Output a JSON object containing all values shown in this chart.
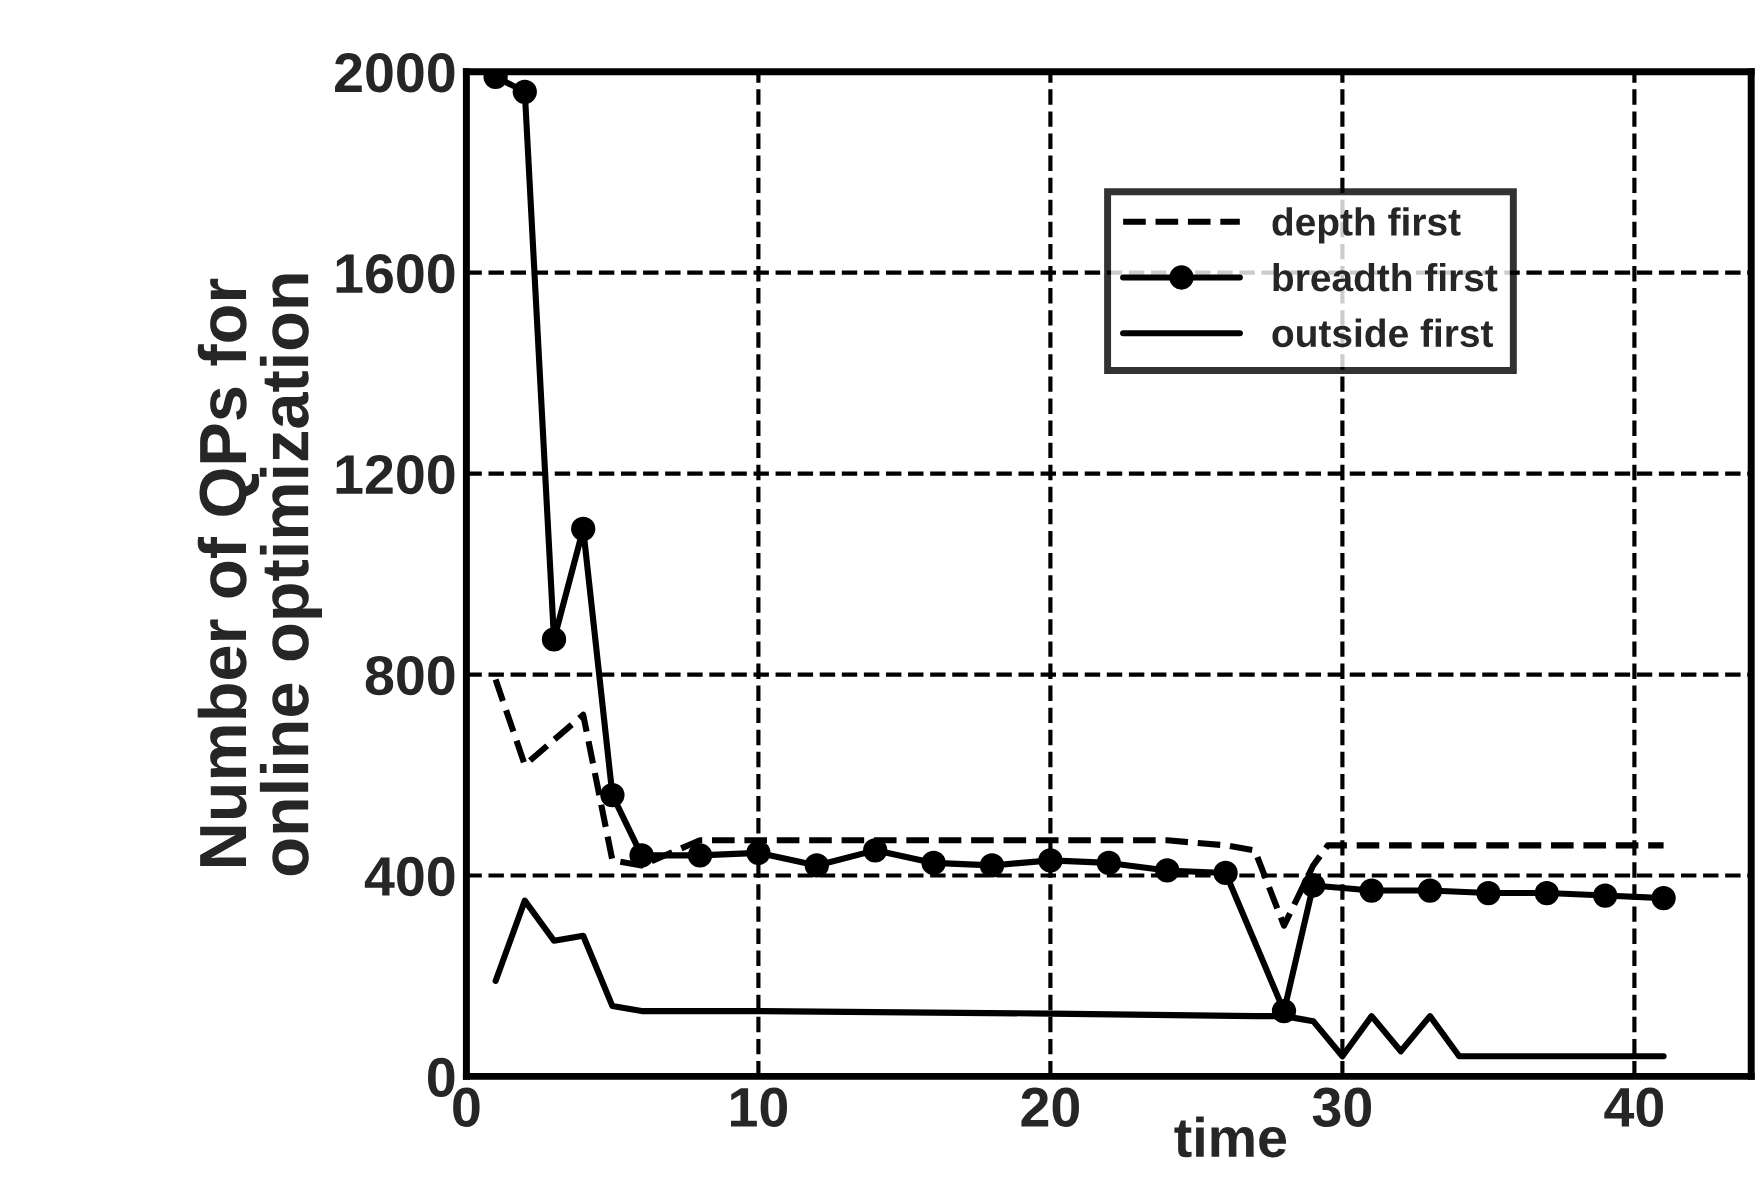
{
  "chart_data": {
    "type": "line",
    "xlabel": "time",
    "ylabel": "Number of QPs for\nonline optimization",
    "xlim": [
      0,
      44
    ],
    "xticks": [
      0,
      10,
      20,
      30,
      40
    ],
    "ylim": [
      0,
      2000
    ],
    "yticks": [
      0,
      400,
      800,
      1200,
      1600,
      2000
    ],
    "grid": true,
    "legend": "top right",
    "series": [
      {
        "name": "depth first",
        "color": "#000000",
        "line_style": "dashed",
        "marker": "none",
        "x": [
          1,
          2,
          4,
          5,
          6,
          8,
          12,
          16,
          20,
          24,
          26,
          27,
          28,
          29,
          29.5,
          35,
          41
        ],
        "values": [
          790,
          620,
          720,
          430,
          420,
          470,
          470,
          470,
          470,
          470,
          460,
          450,
          300,
          420,
          460,
          460,
          460
        ]
      },
      {
        "name": "breadth first",
        "color": "#000000",
        "line_style": "solid",
        "marker": "circle",
        "x": [
          1,
          2,
          3,
          4,
          5,
          6,
          8,
          10,
          12,
          14,
          16,
          18,
          20,
          22,
          24,
          26,
          28,
          29,
          31,
          33,
          35,
          37,
          39,
          41
        ],
        "values": [
          1990,
          1960,
          870,
          1090,
          560,
          440,
          440,
          445,
          420,
          450,
          425,
          420,
          430,
          425,
          410,
          405,
          130,
          380,
          370,
          370,
          365,
          365,
          360,
          355
        ]
      },
      {
        "name": "outside first",
        "color": "#000000",
        "line_style": "solid",
        "marker": "none",
        "x": [
          1,
          2,
          3,
          4,
          5,
          6,
          10,
          20,
          27,
          28,
          29,
          30,
          31,
          32,
          33,
          34,
          41
        ],
        "values": [
          190,
          350,
          270,
          280,
          140,
          130,
          130,
          125,
          120,
          120,
          110,
          40,
          120,
          50,
          120,
          40,
          40
        ]
      }
    ]
  }
}
